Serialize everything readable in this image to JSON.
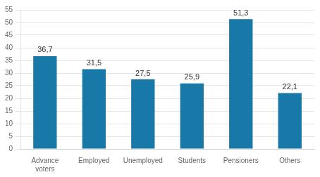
{
  "chart_data": {
    "type": "bar",
    "categories": [
      "Advance\nvoters",
      "Employed",
      "Unemployed",
      "Students",
      "Pensioners",
      "Others"
    ],
    "values": [
      36.7,
      31.5,
      27.5,
      25.9,
      51.3,
      22.1
    ],
    "value_labels": [
      "36,7",
      "31,5",
      "27,5",
      "25,9",
      "51,3",
      "22,1"
    ],
    "data_labels": true,
    "color": "#1878a8",
    "ylim": [
      0,
      55
    ],
    "yticks": [
      0,
      5,
      10,
      15,
      20,
      25,
      30,
      35,
      40,
      45,
      50,
      55
    ],
    "grid": true
  }
}
